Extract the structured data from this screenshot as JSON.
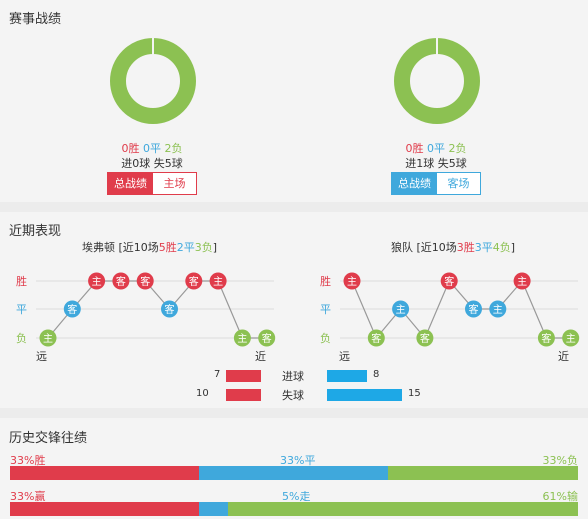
{
  "sections": {
    "record_title": "赛事战绩",
    "recent_title": "近期表现",
    "history_title": "历史交锋往绩"
  },
  "colors": {
    "win": "#e03c4b",
    "draw": "#3fa8dc",
    "loss": "#8cc152"
  },
  "home_record": {
    "win": "0胜",
    "draw": "0平",
    "loss": "2负",
    "goals_for": "进0球",
    "goals_against": "失5球",
    "tab_total": "总战绩",
    "tab_venue": "主场",
    "donut": {
      "win": 0,
      "draw": 0,
      "loss": 2
    }
  },
  "away_record": {
    "win": "0胜",
    "draw": "0平",
    "loss": "2负",
    "goals_for": "进1球",
    "goals_against": "失5球",
    "tab_total": "总战绩",
    "tab_venue": "客场",
    "donut": {
      "win": 0,
      "draw": 0,
      "loss": 2
    }
  },
  "recent": {
    "axis": {
      "win": "胜",
      "draw": "平",
      "loss": "负"
    },
    "far": "远",
    "near": "近",
    "home": {
      "name": "埃弗顿",
      "prefix": "[近10场",
      "w": "5胜",
      "d": "2平",
      "l": "3负",
      "suffix": "]",
      "games": [
        {
          "result": "L",
          "venue": "主"
        },
        {
          "result": "D",
          "venue": "客"
        },
        {
          "result": "W",
          "venue": "主"
        },
        {
          "result": "W",
          "venue": "客"
        },
        {
          "result": "W",
          "venue": "客"
        },
        {
          "result": "D",
          "venue": "客"
        },
        {
          "result": "W",
          "venue": "客"
        },
        {
          "result": "W",
          "venue": "主"
        },
        {
          "result": "L",
          "venue": "主"
        },
        {
          "result": "L",
          "venue": "客"
        }
      ]
    },
    "away": {
      "name": "狼队",
      "prefix": "[近10场",
      "w": "3胜",
      "d": "3平",
      "l": "4负",
      "suffix": "]",
      "games": [
        {
          "result": "W",
          "venue": "主"
        },
        {
          "result": "L",
          "venue": "客"
        },
        {
          "result": "D",
          "venue": "主"
        },
        {
          "result": "L",
          "venue": "客"
        },
        {
          "result": "W",
          "venue": "客"
        },
        {
          "result": "D",
          "venue": "客"
        },
        {
          "result": "D",
          "venue": "主"
        },
        {
          "result": "W",
          "venue": "主"
        },
        {
          "result": "L",
          "venue": "客"
        },
        {
          "result": "L",
          "venue": "主"
        }
      ]
    }
  },
  "goals": {
    "scored_label": "进球",
    "conceded_label": "失球",
    "home_scored": 7,
    "away_scored": 8,
    "home_conceded": 10,
    "away_conceded": 15,
    "max": 15
  },
  "history": {
    "row1": {
      "win_label": "33%胜",
      "draw_label": "33%平",
      "loss_label": "33%负",
      "win": 33.3,
      "draw": 33.3,
      "loss": 33.4
    },
    "row2": {
      "win_label": "33%赢",
      "draw_label": "5%走",
      "loss_label": "61%输",
      "win": 33,
      "draw": 5,
      "loss": 61
    }
  }
}
